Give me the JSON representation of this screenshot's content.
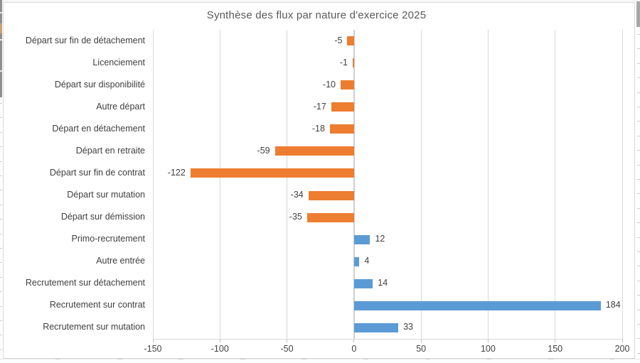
{
  "chart_data": {
    "type": "bar",
    "orientation": "horizontal",
    "title": "Synthèse des flux par nature d'exercice 2025",
    "categories": [
      "Départ sur fin de détachement",
      "Licenciement",
      "Départ sur disponibilité",
      "Autre départ",
      "Départ en détachement",
      "Départ en retraite",
      "Départ sur fin de contrat",
      "Départ sur mutation",
      "Départ sur démission",
      "Primo-recrutement",
      "Autre entrée",
      "Recrutement sur détachement",
      "Recrutement sur contrat",
      "Recrutement sur mutation"
    ],
    "values": [
      -5,
      -1,
      -10,
      -17,
      -18,
      -59,
      -122,
      -34,
      -35,
      12,
      4,
      14,
      184,
      33
    ],
    "value_labels": [
      "-5",
      "-1",
      "-10",
      "-17",
      "-18",
      "-59",
      "-122",
      "-34",
      "-35",
      "12",
      "4",
      "14",
      "184",
      "33"
    ],
    "xlim": [
      -150,
      200
    ],
    "xticks": [
      -150,
      -100,
      -50,
      0,
      50,
      100,
      150,
      200
    ],
    "xtick_labels": [
      "-150",
      "-100",
      "-50",
      "0",
      "50",
      "100",
      "150",
      "200"
    ],
    "legend": "none",
    "grid": "vertical",
    "colors": {
      "negative_bar": "#ED7D31",
      "positive_bar": "#5B9BD5",
      "gridline": "#D9D9D9",
      "zero_axis": "#D0CECE",
      "tick": "#BFBFBF",
      "label": "#404040",
      "title": "#595959",
      "chart_border": "#D9D9D9"
    }
  }
}
